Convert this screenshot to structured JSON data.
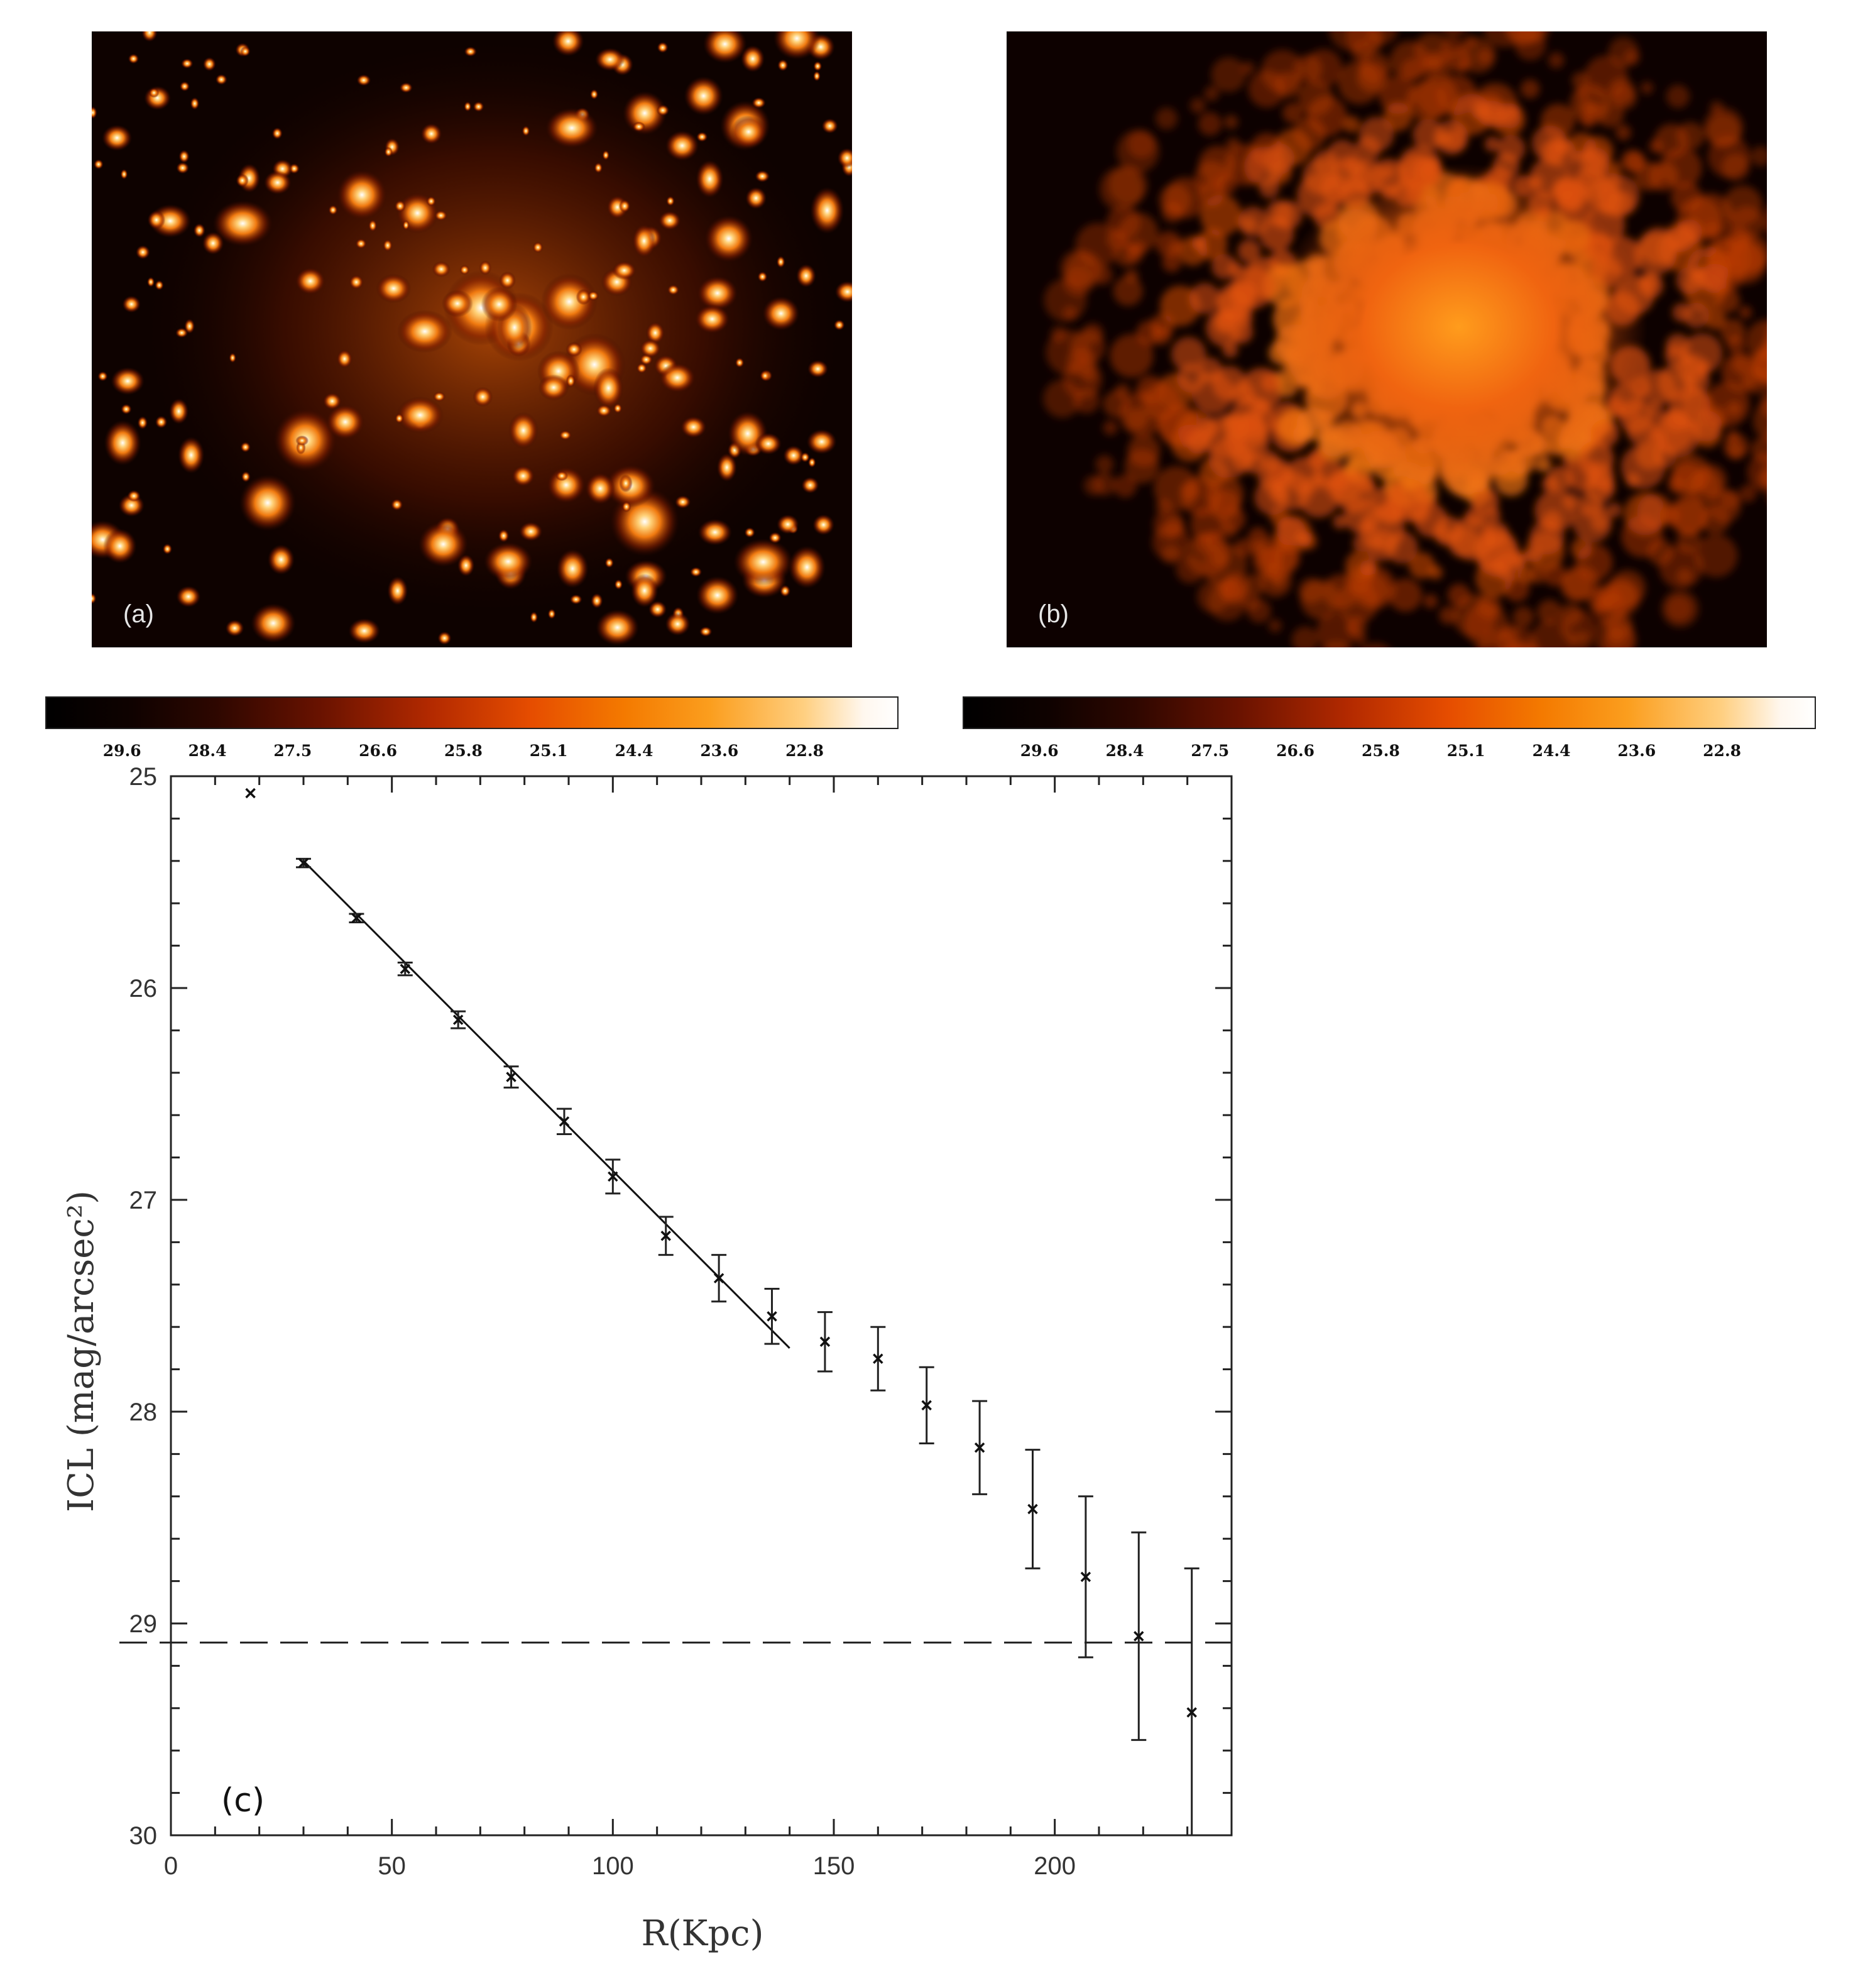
{
  "panels": {
    "a": {
      "label": "(a)"
    },
    "b": {
      "label": "(b)"
    },
    "c": {
      "label": "(c)"
    }
  },
  "colorbar": {
    "colors": [
      "#000000",
      "#2e0700",
      "#b22900",
      "#f47a00",
      "#ffcf80",
      "#ffffff"
    ],
    "tick_labels": [
      "29.6",
      "28.4",
      "27.5",
      "26.6",
      "25.8",
      "25.1",
      "24.4",
      "23.6",
      "22.8"
    ]
  },
  "chart_data": {
    "type": "scatter",
    "xlabel": "R(Kpc)",
    "ylabel": "ICL (mag/arcsec²)",
    "xlim": [
      0,
      240
    ],
    "ylim": [
      30,
      25
    ],
    "y_inverted": true,
    "xticks": [
      0,
      50,
      100,
      150,
      200
    ],
    "yticks": [
      25,
      26,
      27,
      28,
      29,
      30
    ],
    "points": [
      {
        "x": 18,
        "y": 25.08,
        "err": 0.01
      },
      {
        "x": 30,
        "y": 25.41,
        "err": 0.02
      },
      {
        "x": 42,
        "y": 25.67,
        "err": 0.02
      },
      {
        "x": 53,
        "y": 25.91,
        "err": 0.03
      },
      {
        "x": 65,
        "y": 26.15,
        "err": 0.04
      },
      {
        "x": 77,
        "y": 26.42,
        "err": 0.05
      },
      {
        "x": 89,
        "y": 26.63,
        "err": 0.06
      },
      {
        "x": 100,
        "y": 26.89,
        "err": 0.08
      },
      {
        "x": 112,
        "y": 27.17,
        "err": 0.09
      },
      {
        "x": 124,
        "y": 27.37,
        "err": 0.11
      },
      {
        "x": 136,
        "y": 27.55,
        "err": 0.13
      },
      {
        "x": 148,
        "y": 27.67,
        "err": 0.14
      },
      {
        "x": 160,
        "y": 27.75,
        "err": 0.15
      },
      {
        "x": 171,
        "y": 27.97,
        "err": 0.18
      },
      {
        "x": 183,
        "y": 28.17,
        "err": 0.22
      },
      {
        "x": 195,
        "y": 28.46,
        "err": 0.28
      },
      {
        "x": 207,
        "y": 28.78,
        "err": 0.38
      },
      {
        "x": 219,
        "y": 29.06,
        "err": 0.49
      },
      {
        "x": 231,
        "y": 29.42,
        "err": 0.68
      }
    ],
    "fit_line": {
      "x": [
        30,
        140
      ],
      "y": [
        25.4,
        27.7
      ]
    },
    "limit_line": {
      "y": 29.09,
      "style": "dashed"
    }
  }
}
